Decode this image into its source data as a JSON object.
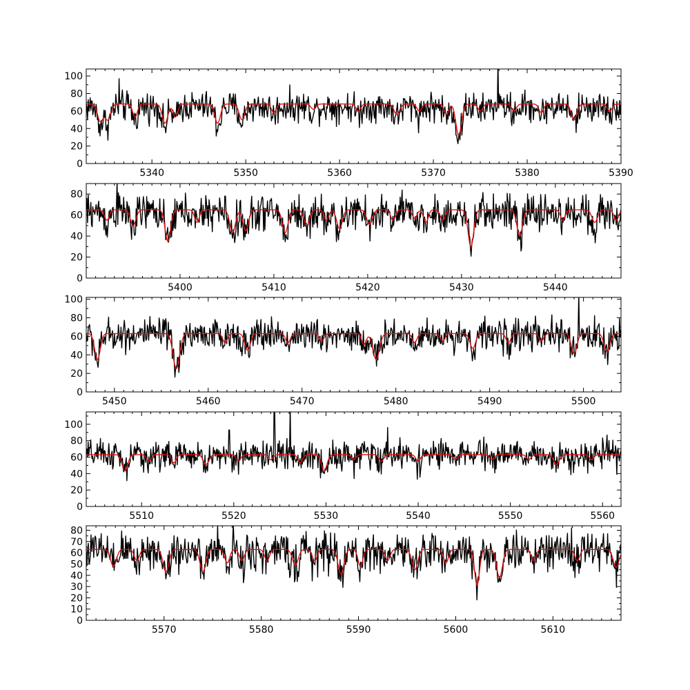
{
  "colors": {
    "observed": "#000000",
    "model": "#e01010",
    "axes": "#000000",
    "background": "#ffffff"
  },
  "chart_data": [
    {
      "type": "line",
      "xlim": [
        5333,
        5390
      ],
      "ylim": [
        0,
        108
      ],
      "xticks": [
        5340,
        5350,
        5360,
        5370,
        5380,
        5390
      ],
      "yticks": [
        0,
        20,
        40,
        60,
        80,
        100
      ],
      "continuum_observed": 65,
      "continuum_model": 68,
      "spikes": [
        [
          5336.5,
          97
        ],
        [
          5376.9,
          118
        ]
      ],
      "lines": [
        [
          5334.5,
          20,
          0.3
        ],
        [
          5335.3,
          18,
          0.3
        ],
        [
          5338.2,
          15,
          0.25
        ],
        [
          5341.4,
          22,
          0.3
        ],
        [
          5342.5,
          15,
          0.25
        ],
        [
          5347.0,
          22,
          0.3
        ],
        [
          5349.6,
          18,
          0.3
        ],
        [
          5353.0,
          10,
          0.25
        ],
        [
          5357.2,
          6,
          0.25
        ],
        [
          5362.0,
          8,
          0.25
        ],
        [
          5366.1,
          12,
          0.3
        ],
        [
          5368.5,
          8,
          0.25
        ],
        [
          5371.4,
          12,
          0.25
        ],
        [
          5372.7,
          36,
          0.3
        ],
        [
          5375.0,
          8,
          0.25
        ],
        [
          5378.6,
          8,
          0.25
        ],
        [
          5381.5,
          10,
          0.25
        ],
        [
          5385.0,
          18,
          0.3
        ],
        [
          5388.8,
          8,
          0.25
        ]
      ],
      "series": [
        {
          "name": "",
          "role": "observed"
        },
        {
          "name": "",
          "role": "model"
        }
      ]
    },
    {
      "type": "line",
      "xlim": [
        5390,
        5447
      ],
      "ylim": [
        0,
        90
      ],
      "xticks": [
        5400,
        5410,
        5420,
        5430,
        5440
      ],
      "yticks": [
        0,
        20,
        40,
        60,
        80
      ],
      "continuum_observed": 63,
      "continuum_model": 65,
      "spikes": [
        [
          5393.3,
          92
        ]
      ],
      "lines": [
        [
          5392.2,
          10,
          0.25
        ],
        [
          5395.0,
          15,
          0.3
        ],
        [
          5398.7,
          30,
          0.3
        ],
        [
          5401.8,
          12,
          0.25
        ],
        [
          5405.6,
          22,
          0.3
        ],
        [
          5407.0,
          20,
          0.3
        ],
        [
          5411.2,
          22,
          0.3
        ],
        [
          5413.5,
          15,
          0.3
        ],
        [
          5415.6,
          10,
          0.25
        ],
        [
          5417.0,
          18,
          0.3
        ],
        [
          5420.2,
          14,
          0.3
        ],
        [
          5422.7,
          10,
          0.25
        ],
        [
          5425.0,
          8,
          0.25
        ],
        [
          5426.2,
          12,
          0.25
        ],
        [
          5428.0,
          10,
          0.25
        ],
        [
          5431.0,
          35,
          0.3
        ],
        [
          5436.2,
          25,
          0.3
        ],
        [
          5440.8,
          10,
          0.25
        ],
        [
          5444.2,
          12,
          0.3
        ],
        [
          5446.5,
          10,
          0.25
        ]
      ],
      "series": [
        {
          "name": "",
          "role": "observed"
        },
        {
          "name": "",
          "role": "model"
        }
      ]
    },
    {
      "type": "line",
      "xlim": [
        5447,
        5504
      ],
      "ylim": [
        0,
        102
      ],
      "xticks": [
        5450,
        5460,
        5470,
        5480,
        5490,
        5500
      ],
      "yticks": [
        0,
        20,
        40,
        60,
        80,
        100
      ],
      "continuum_observed": 62,
      "continuum_model": 63,
      "spikes": [
        [
          5499.5,
          106
        ]
      ],
      "lines": [
        [
          5448.2,
          28,
          0.3
        ],
        [
          5456.6,
          38,
          0.35
        ],
        [
          5461.8,
          10,
          0.25
        ],
        [
          5464.2,
          18,
          0.3
        ],
        [
          5468.5,
          10,
          0.25
        ],
        [
          5472.1,
          8,
          0.25
        ],
        [
          5476.6,
          12,
          0.25
        ],
        [
          5477.9,
          28,
          0.35
        ],
        [
          5482.0,
          10,
          0.25
        ],
        [
          5485.0,
          8,
          0.25
        ],
        [
          5488.2,
          16,
          0.3
        ],
        [
          5492.0,
          10,
          0.25
        ],
        [
          5495.5,
          8,
          0.25
        ],
        [
          5499.0,
          22,
          0.3
        ],
        [
          5502.5,
          20,
          0.3
        ]
      ],
      "series": [
        {
          "name": "",
          "role": "observed"
        },
        {
          "name": "",
          "role": "model"
        }
      ]
    },
    {
      "type": "line",
      "xlim": [
        5504,
        5562
      ],
      "ylim": [
        0,
        115
      ],
      "xticks": [
        5510,
        5520,
        5530,
        5540,
        5550,
        5560
      ],
      "yticks": [
        0,
        20,
        40,
        60,
        80,
        100
      ],
      "continuum_observed": 63,
      "continuum_model": 63,
      "spikes": [
        [
          5519.5,
          93
        ],
        [
          5524.4,
          120
        ],
        [
          5526.1,
          122
        ],
        [
          5536.7,
          96
        ]
      ],
      "lines": [
        [
          5508.2,
          20,
          0.3
        ],
        [
          5510.8,
          8,
          0.25
        ],
        [
          5513.5,
          10,
          0.25
        ],
        [
          5517.0,
          12,
          0.3
        ],
        [
          5520.5,
          8,
          0.25
        ],
        [
          5524.0,
          6,
          0.25
        ],
        [
          5527.2,
          10,
          0.25
        ],
        [
          5529.8,
          20,
          0.3
        ],
        [
          5533.0,
          6,
          0.25
        ],
        [
          5536.0,
          8,
          0.25
        ],
        [
          5540.0,
          8,
          0.25
        ],
        [
          5544.0,
          6,
          0.25
        ],
        [
          5548.0,
          6,
          0.25
        ],
        [
          5552.0,
          6,
          0.25
        ],
        [
          5555.0,
          12,
          0.3
        ],
        [
          5558.8,
          6,
          0.25
        ]
      ],
      "series": [
        {
          "name": "",
          "role": "observed"
        },
        {
          "name": "",
          "role": "model"
        }
      ]
    },
    {
      "type": "line",
      "xlim": [
        5562,
        5617
      ],
      "ylim": [
        0,
        84
      ],
      "xticks": [
        5570,
        5580,
        5590,
        5600,
        5610
      ],
      "yticks": [
        0,
        10,
        20,
        30,
        40,
        50,
        60,
        70,
        80
      ],
      "continuum_observed": 62,
      "continuum_model": 63,
      "spikes": [
        [
          5577.1,
          86
        ]
      ],
      "lines": [
        [
          5564.8,
          15,
          0.3
        ],
        [
          5567.2,
          10,
          0.25
        ],
        [
          5570.2,
          20,
          0.3
        ],
        [
          5574.0,
          20,
          0.3
        ],
        [
          5576.5,
          12,
          0.25
        ],
        [
          5578.0,
          10,
          0.25
        ],
        [
          5580.6,
          10,
          0.25
        ],
        [
          5583.5,
          14,
          0.3
        ],
        [
          5585.5,
          10,
          0.25
        ],
        [
          5588.2,
          22,
          0.3
        ],
        [
          5590.2,
          15,
          0.25
        ],
        [
          5593.0,
          10,
          0.25
        ],
        [
          5595.8,
          18,
          0.3
        ],
        [
          5599.0,
          12,
          0.25
        ],
        [
          5602.2,
          32,
          0.25
        ],
        [
          5604.5,
          25,
          0.3
        ],
        [
          5608.0,
          10,
          0.25
        ],
        [
          5612.5,
          10,
          0.25
        ],
        [
          5616.5,
          16,
          0.3
        ]
      ],
      "series": [
        {
          "name": "",
          "role": "observed"
        },
        {
          "name": "",
          "role": "model"
        }
      ]
    }
  ]
}
